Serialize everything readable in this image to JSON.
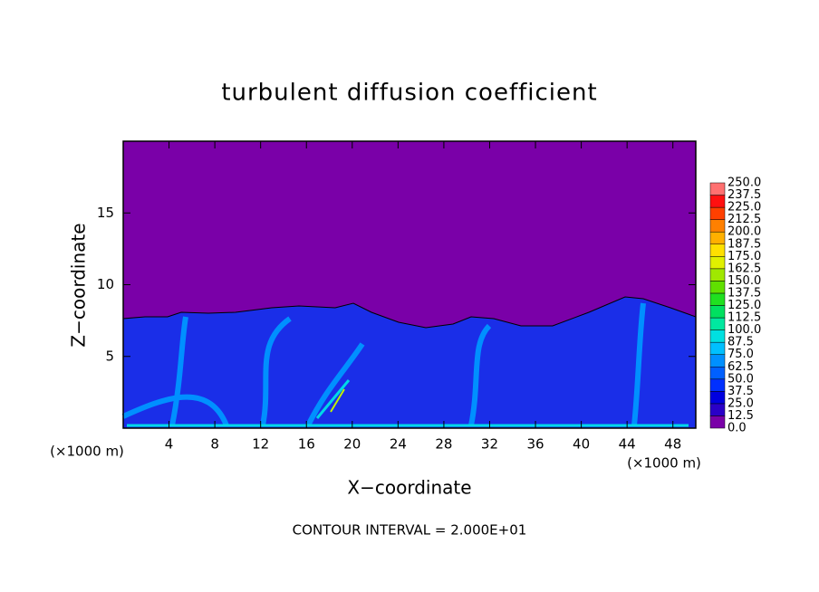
{
  "chart_data": {
    "type": "contour",
    "title": "turbulent diffusion coefficient",
    "xlabel": "X−coordinate",
    "ylabel": "Z−coordinate",
    "x_unit": "(×1000 m)",
    "annotation": "CONTOUR INTERVAL = 2.000E+01",
    "xlim": [
      0,
      50
    ],
    "xticks": [
      4,
      8,
      12,
      16,
      20,
      24,
      28,
      32,
      36,
      40,
      44,
      48
    ],
    "ylim": [
      0,
      20
    ],
    "yticks": [
      5,
      10,
      15
    ],
    "colorbar": {
      "levels": [
        {
          "value": 0,
          "label": "0.0"
        },
        {
          "value": 12.5,
          "label": "12.5"
        },
        {
          "value": 25,
          "label": "25.0"
        },
        {
          "value": 37.5,
          "label": "37.5"
        },
        {
          "value": 50,
          "label": "50.0"
        },
        {
          "value": 62.5,
          "label": "62.5"
        },
        {
          "value": 75,
          "label": "75.0"
        },
        {
          "value": 87.5,
          "label": "87.5"
        },
        {
          "value": 100,
          "label": "100.0"
        },
        {
          "value": 112.5,
          "label": "112.5"
        },
        {
          "value": 125,
          "label": "125.0"
        },
        {
          "value": 137.5,
          "label": "137.5"
        },
        {
          "value": 150,
          "label": "150.0"
        },
        {
          "value": 162.5,
          "label": "162.5"
        },
        {
          "value": 175,
          "label": "175.0"
        },
        {
          "value": 187.5,
          "label": "187.5"
        },
        {
          "value": 200,
          "label": "200.0"
        },
        {
          "value": 212.5,
          "label": "212.5"
        },
        {
          "value": 225,
          "label": "225.0"
        },
        {
          "value": 237.5,
          "label": "237.5"
        },
        {
          "value": 250,
          "label": "250.0"
        }
      ],
      "colors": [
        "#7a00a8",
        "#2a00c8",
        "#0000e0",
        "#0030ff",
        "#0060ff",
        "#0090ff",
        "#00c0ff",
        "#00e0e0",
        "#00e8a0",
        "#00e060",
        "#20e020",
        "#60e000",
        "#a0e800",
        "#e0f000",
        "#ffe000",
        "#ffb000",
        "#ff8000",
        "#ff4000",
        "#ff1010",
        "#ff7070"
      ]
    }
  }
}
